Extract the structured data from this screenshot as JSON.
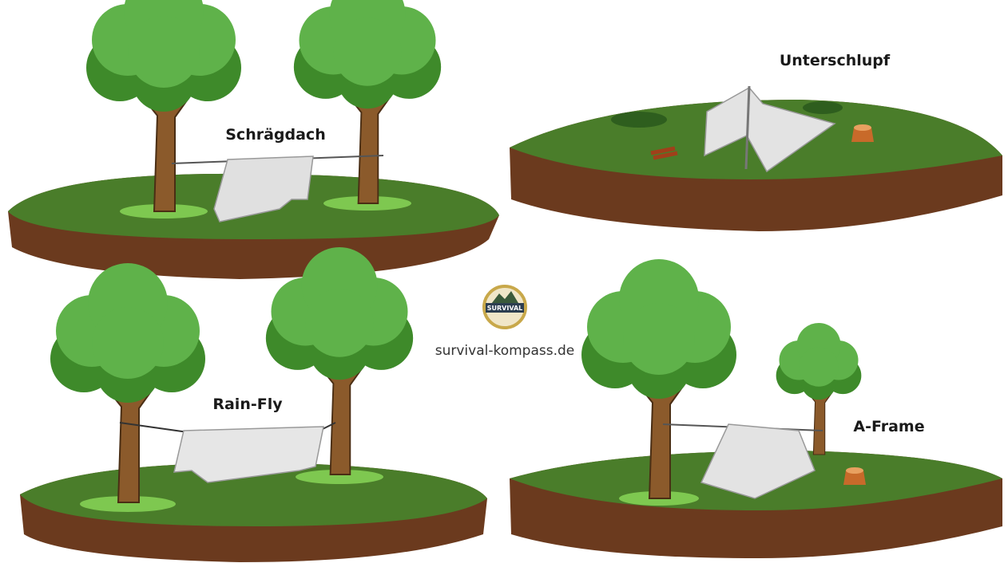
{
  "panels": [
    {
      "label": "Schrägdach"
    },
    {
      "label": "Unterschlupf"
    },
    {
      "label": "Rain-Fly"
    },
    {
      "label": "A-Frame"
    }
  ],
  "logo": {
    "badge": "SURVIVAL",
    "site": "survival-kompass.de"
  }
}
